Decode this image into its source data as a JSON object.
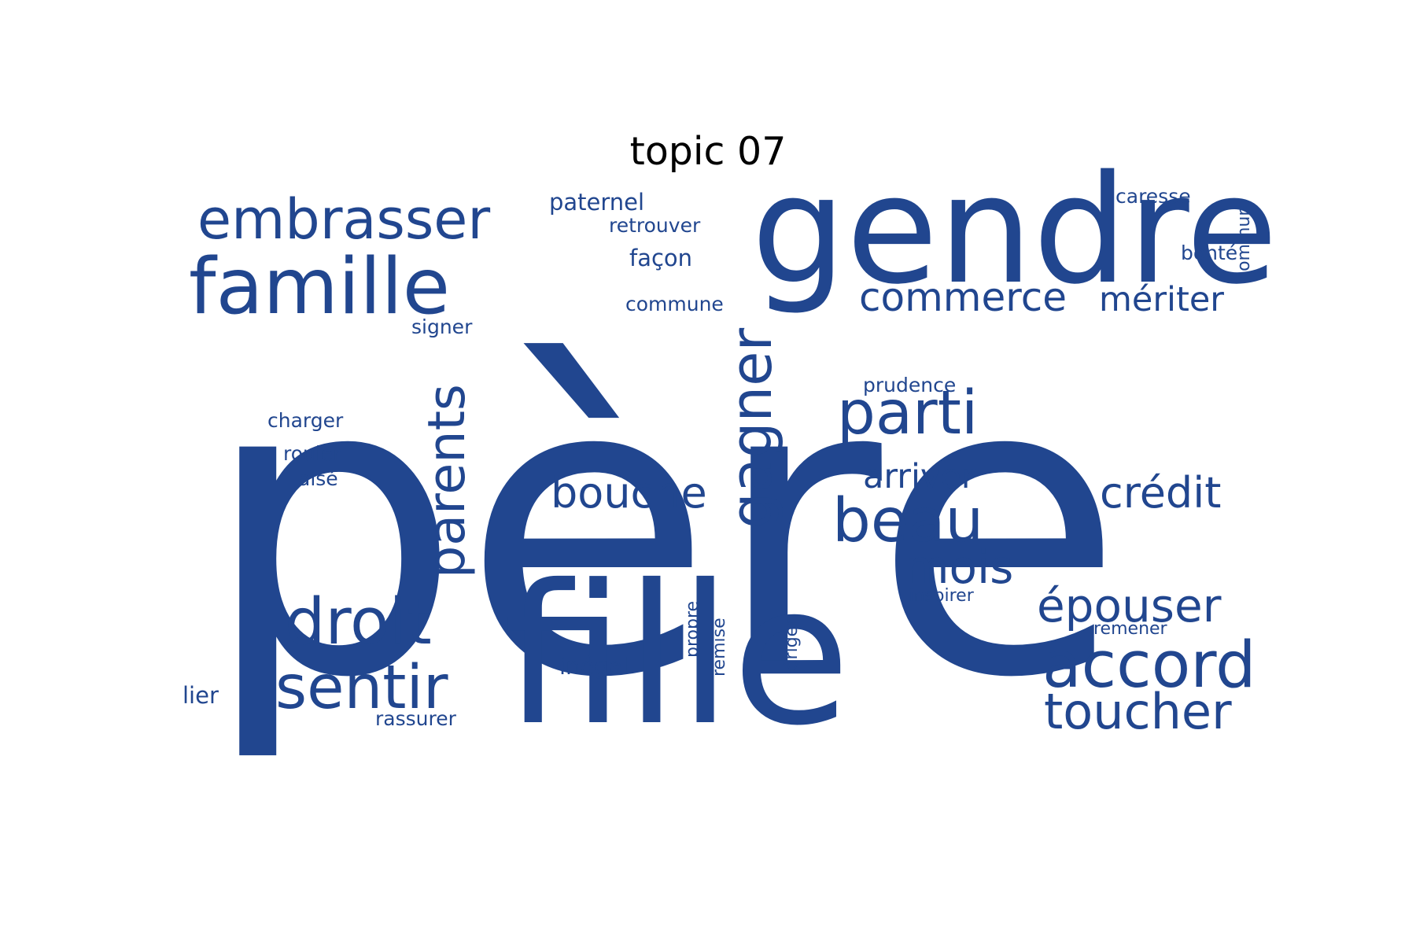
{
  "title": "topic 07",
  "color": "#21468F",
  "words": [
    {
      "text": "père",
      "weight": 100,
      "orientation": "horizontal"
    },
    {
      "text": "fille",
      "weight": 48,
      "orientation": "horizontal"
    },
    {
      "text": "gendre",
      "weight": 37,
      "orientation": "horizontal"
    },
    {
      "text": "famille",
      "weight": 25,
      "orientation": "horizontal"
    },
    {
      "text": "embrasser",
      "weight": 18,
      "orientation": "horizontal"
    },
    {
      "text": "droit",
      "weight": 19,
      "orientation": "horizontal"
    },
    {
      "text": "sentir",
      "weight": 18,
      "orientation": "horizontal"
    },
    {
      "text": "accord",
      "weight": 19,
      "orientation": "horizontal"
    },
    {
      "text": "parti",
      "weight": 17,
      "orientation": "horizontal"
    },
    {
      "text": "beau",
      "weight": 17,
      "orientation": "horizontal"
    },
    {
      "text": "gagner",
      "weight": 17,
      "orientation": "vertical"
    },
    {
      "text": "parents",
      "weight": 16,
      "orientation": "vertical"
    },
    {
      "text": "toucher",
      "weight": 15,
      "orientation": "horizontal"
    },
    {
      "text": "épouser",
      "weight": 14,
      "orientation": "horizontal"
    },
    {
      "text": "mois",
      "weight": 14,
      "orientation": "horizontal"
    },
    {
      "text": "bouche",
      "weight": 13,
      "orientation": "horizontal"
    },
    {
      "text": "crédit",
      "weight": 13,
      "orientation": "horizontal"
    },
    {
      "text": "commerce",
      "weight": 12,
      "orientation": "horizontal"
    },
    {
      "text": "mériter",
      "weight": 10,
      "orientation": "horizontal"
    },
    {
      "text": "arriver",
      "weight": 10,
      "orientation": "horizontal"
    },
    {
      "text": "paternel",
      "weight": 7,
      "orientation": "horizontal"
    },
    {
      "text": "façon",
      "weight": 7,
      "orientation": "horizontal"
    },
    {
      "text": "retrouver",
      "weight": 6,
      "orientation": "horizontal"
    },
    {
      "text": "caresse",
      "weight": 6,
      "orientation": "horizontal"
    },
    {
      "text": "bonté",
      "weight": 6,
      "orientation": "horizontal"
    },
    {
      "text": "commune",
      "weight": 6,
      "orientation": "horizontal"
    },
    {
      "text": "signer",
      "weight": 6,
      "orientation": "horizontal"
    },
    {
      "text": "commun",
      "weight": 5,
      "orientation": "vertical"
    },
    {
      "text": "prudence",
      "weight": 6,
      "orientation": "horizontal"
    },
    {
      "text": "charger",
      "weight": 6,
      "orientation": "horizontal"
    },
    {
      "text": "rouler",
      "weight": 6,
      "orientation": "horizontal"
    },
    {
      "text": "aisé",
      "weight": 6,
      "orientation": "horizontal"
    },
    {
      "text": "inspirer",
      "weight": 5,
      "orientation": "horizontal"
    },
    {
      "text": "remener",
      "weight": 5,
      "orientation": "horizontal"
    },
    {
      "text": "propre",
      "weight": 5,
      "orientation": "vertical"
    },
    {
      "text": "remise",
      "weight": 5,
      "orientation": "vertical"
    },
    {
      "text": "ériger",
      "weight": 5,
      "orientation": "vertical"
    },
    {
      "text": "inégal",
      "weight": 6,
      "orientation": "horizontal"
    },
    {
      "text": "lier",
      "weight": 6,
      "orientation": "horizontal"
    },
    {
      "text": "rassurer",
      "weight": 6,
      "orientation": "horizontal"
    }
  ]
}
